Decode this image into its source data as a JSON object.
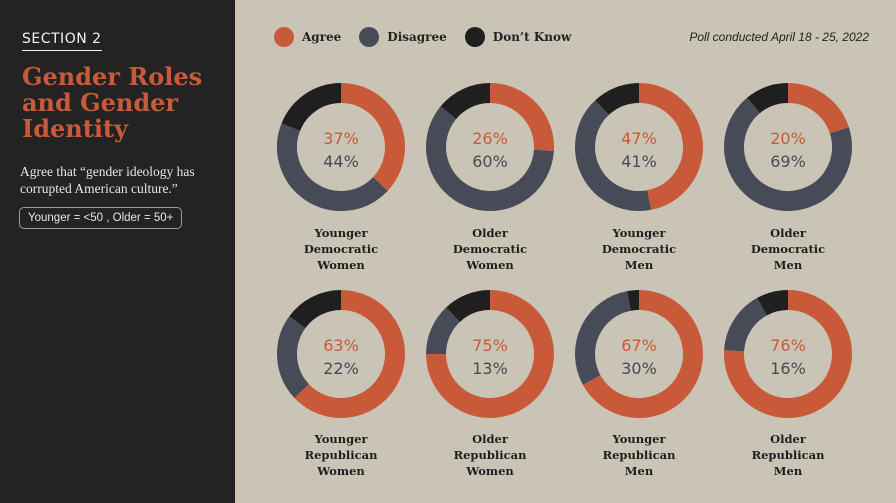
{
  "sidebar": {
    "section": "SECTION 2",
    "title": "Gender Roles and Gender Identity",
    "subtitle": "Agree that “gender ideology has corrupted American culture.”",
    "age_note": "Younger = <50 , Older = 50+"
  },
  "legend": {
    "agree": "Agree",
    "disagree": "Disagree",
    "dont_know": "Don’t Know"
  },
  "poll_note": "Poll conducted April 18 - 25, 2022",
  "colors": {
    "agree": "#c85a3a",
    "disagree": "#474b57",
    "dont_know": "#1f1f1f",
    "background": "#c9c4b5"
  },
  "chart_data": {
    "type": "pie",
    "title": "Agree that “gender ideology has corrupted American culture.”",
    "series_names": [
      "Agree",
      "Disagree",
      "Don’t Know"
    ],
    "groups": [
      {
        "label_lines": [
          "Younger",
          "Democratic",
          "Women"
        ],
        "agree": 37,
        "disagree": 44,
        "dont_know": 19,
        "agree_label": "37%",
        "disagree_label": "44%"
      },
      {
        "label_lines": [
          "Older",
          "Democratic",
          "Women"
        ],
        "agree": 26,
        "disagree": 60,
        "dont_know": 14,
        "agree_label": "26%",
        "disagree_label": "60%"
      },
      {
        "label_lines": [
          "Younger",
          "Democratic",
          "Men"
        ],
        "agree": 47,
        "disagree": 41,
        "dont_know": 12,
        "agree_label": "47%",
        "disagree_label": "41%"
      },
      {
        "label_lines": [
          "Older",
          "Democratic",
          "Men"
        ],
        "agree": 20,
        "disagree": 69,
        "dont_know": 11,
        "agree_label": "20%",
        "disagree_label": "69%"
      },
      {
        "label_lines": [
          "Younger",
          "Republican",
          "Women"
        ],
        "agree": 63,
        "disagree": 22,
        "dont_know": 15,
        "agree_label": "63%",
        "disagree_label": "22%"
      },
      {
        "label_lines": [
          "Older",
          "Republican",
          "Women"
        ],
        "agree": 75,
        "disagree": 13,
        "dont_know": 12,
        "agree_label": "75%",
        "disagree_label": "13%"
      },
      {
        "label_lines": [
          "Younger",
          "Republican",
          "Men"
        ],
        "agree": 67,
        "disagree": 30,
        "dont_know": 3,
        "agree_label": "67%",
        "disagree_label": "30%"
      },
      {
        "label_lines": [
          "Older",
          "Republican",
          "Men"
        ],
        "agree": 76,
        "disagree": 16,
        "dont_know": 8,
        "agree_label": "76%",
        "disagree_label": "16%"
      }
    ]
  }
}
